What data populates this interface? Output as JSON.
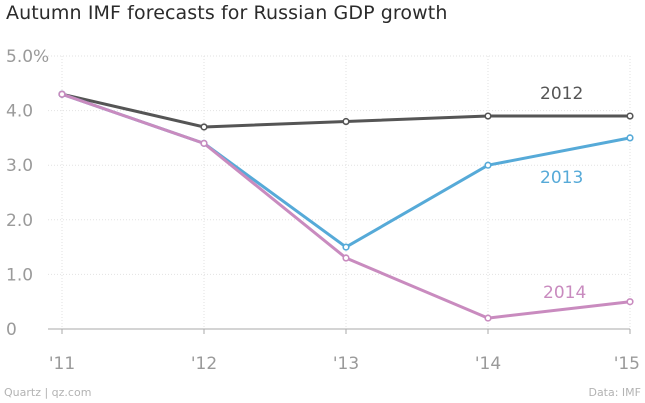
{
  "chart_data": {
    "type": "line",
    "title": "Autumn IMF forecasts for Russian GDP growth",
    "xlabel": "",
    "ylabel": "",
    "categories": [
      "'11",
      "'12",
      "'13",
      "'14",
      "'15"
    ],
    "ylim": [
      0,
      5
    ],
    "yticks": [
      "0",
      "1.0",
      "2.0",
      "3.0",
      "4.0",
      "5.0%"
    ],
    "grid": true,
    "series": [
      {
        "name": "2012",
        "color": "#555555",
        "values": [
          4.3,
          3.7,
          3.8,
          3.9,
          3.9
        ]
      },
      {
        "name": "2013",
        "color": "#56aad8",
        "values": [
          4.3,
          3.4,
          1.5,
          3.0,
          3.5
        ]
      },
      {
        "name": "2014",
        "color": "#c98bbf",
        "values": [
          4.3,
          3.4,
          1.3,
          0.2,
          0.5
        ]
      }
    ]
  },
  "footer": {
    "source_left": "Quartz | qz.com",
    "source_right": "Data: IMF"
  }
}
